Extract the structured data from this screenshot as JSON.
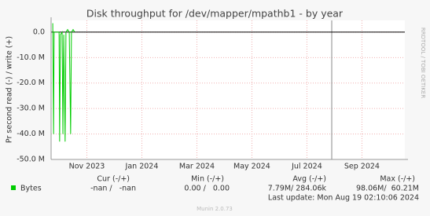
{
  "chart_data": {
    "type": "line",
    "title": "Disk throughput for /dev/mapper/mpathb1 - by year",
    "y_label": "Pr second read (-) / write (+)",
    "side_text": "RRDTOOL / TOBI OETIKER",
    "xlim": [
      -2.8,
      10.06
    ],
    "xticks": [
      {
        "value": -1.5,
        "label": "Nov 2023"
      },
      {
        "value": 0.5,
        "label": "Jan 2024"
      },
      {
        "value": 2.5,
        "label": "Mar 2024"
      },
      {
        "value": 4.5,
        "label": "May 2024"
      },
      {
        "value": 6.5,
        "label": "Jul 2024"
      },
      {
        "value": 8.5,
        "label": "Sep 2024"
      }
    ],
    "ylim": [
      -50000000,
      4600000
    ],
    "yticks": [
      {
        "value": 0,
        "label": "0.0"
      },
      {
        "value": -10000000,
        "label": "-10.0 M"
      },
      {
        "value": -20000000,
        "label": "-20.0 M"
      },
      {
        "value": -30000000,
        "label": "-30.0 M"
      },
      {
        "value": -40000000,
        "label": "-40.0 M"
      },
      {
        "value": -50000000,
        "label": "-50.0 M"
      }
    ],
    "grid": true,
    "x": [
      -2.74,
      -2.71,
      -2.69,
      -2.51,
      -2.49,
      -2.46,
      -2.4,
      -2.37,
      -2.34,
      -2.29,
      -2.26,
      -2.2,
      -2.14,
      -2.09,
      -2.06,
      -2.0,
      -1.94
    ],
    "series": [
      {
        "name": "Bytes",
        "color": "#00cc00",
        "values": [
          3500000,
          -40000000,
          0,
          0,
          -43000000,
          -1000000,
          0,
          -40000000,
          -1000000,
          -43000000,
          0,
          1000000,
          0,
          -40000000,
          0,
          1000000,
          0
        ]
      }
    ],
    "legend_table": {
      "headers": [
        "Cur (-/+)",
        "Min (-/+)",
        "Avg (-/+)",
        "Max (-/+)"
      ],
      "rows": [
        [
          "-nan /   -nan",
          "0.00 /   0.00",
          "7.79M/ 284.06k",
          "98.06M/  60.21M"
        ]
      ]
    },
    "last_update": "Last update: Mon Aug 19 02:10:06 2024",
    "footer": "Munin 2.0.73"
  }
}
